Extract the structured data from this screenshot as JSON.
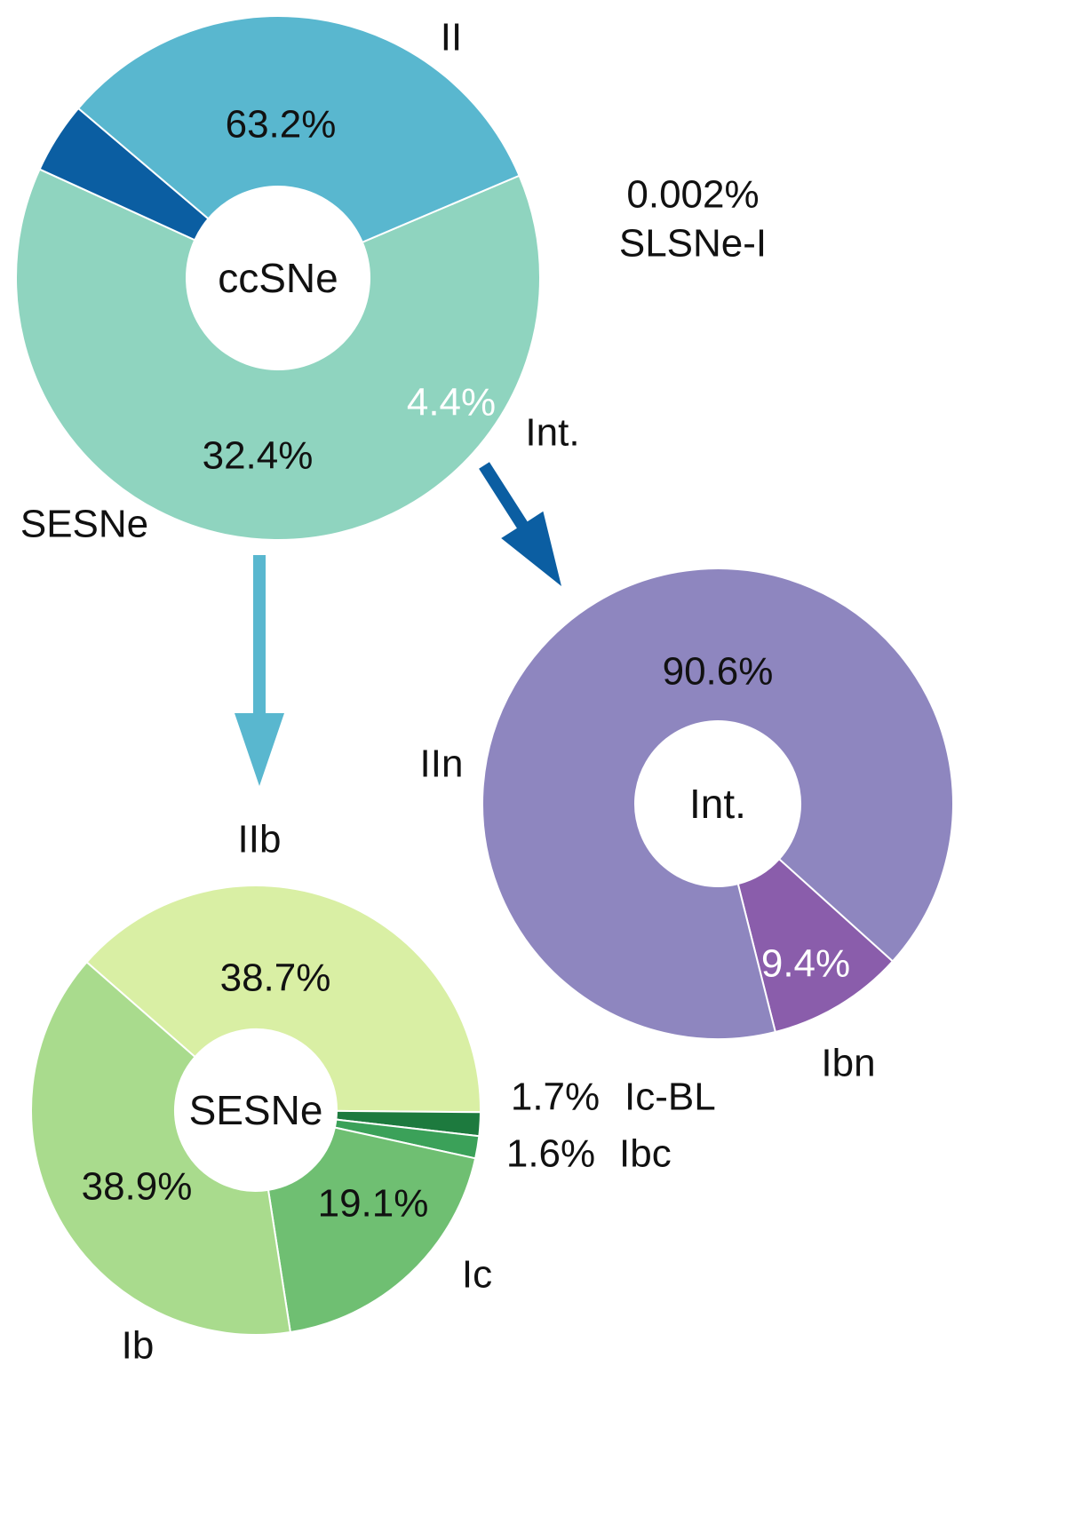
{
  "chart_data": [
    {
      "type": "pie",
      "center_label": "ccSNe",
      "slices": [
        {
          "name": "II",
          "value": 63.2,
          "value_label": "63.2%",
          "color": "#8FD4BF",
          "text_color": "#111111"
        },
        {
          "name": "Int.",
          "value": 4.4,
          "value_label": "4.4%",
          "color": "#0B5EA2",
          "text_color": "#FFFFFF"
        },
        {
          "name": "SESNe",
          "value": 32.4,
          "value_label": "32.4%",
          "color": "#59B7CF",
          "text_color": "#111111"
        }
      ],
      "extra_annotation": {
        "value_label": "0.002%",
        "name": "SLSNe-I"
      }
    },
    {
      "type": "pie",
      "center_label": "Int.",
      "slices": [
        {
          "name": "Ibn",
          "value": 9.4,
          "value_label": "9.4%",
          "color": "#8A5DAB",
          "text_color": "#FFFFFF"
        },
        {
          "name": "IIn",
          "value": 90.6,
          "value_label": "90.6%",
          "color": "#8E86BF",
          "text_color": "#111111"
        }
      ]
    },
    {
      "type": "pie",
      "center_label": "SESNe",
      "slices": [
        {
          "name": "IIb",
          "value": 38.7,
          "value_label": "38.7%",
          "color": "#D9EFA4",
          "text_color": "#111111"
        },
        {
          "name": "Ic-BL",
          "value": 1.7,
          "value_label": "1.7%",
          "color": "#1D7A3E",
          "text_color": "#111111"
        },
        {
          "name": "Ibc",
          "value": 1.6,
          "value_label": "1.6%",
          "color": "#3BA159",
          "text_color": "#111111"
        },
        {
          "name": "Ic",
          "value": 19.1,
          "value_label": "19.1%",
          "color": "#6FBF72",
          "text_color": "#111111"
        },
        {
          "name": "Ib",
          "value": 38.9,
          "value_label": "38.9%",
          "color": "#A9DB8D",
          "text_color": "#111111"
        }
      ]
    }
  ],
  "arrows": [
    {
      "from": "Int.",
      "to": "Int.",
      "color": "#0B5EA2"
    },
    {
      "from": "SESNe",
      "to": "SESNe",
      "color": "#59B7CF"
    }
  ]
}
